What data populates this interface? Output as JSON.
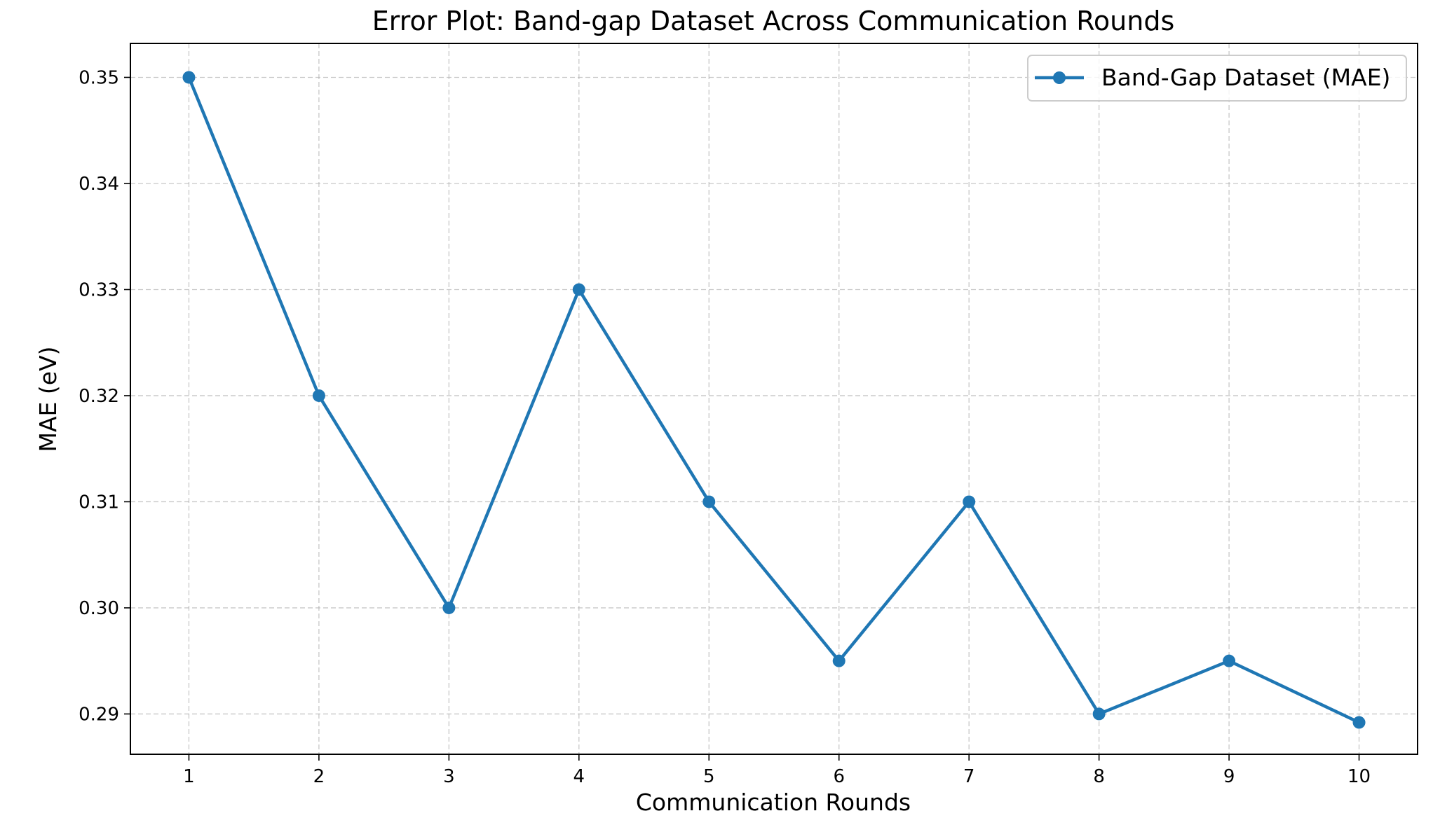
{
  "chart_data": {
    "type": "line",
    "title": "Error Plot: Band-gap Dataset Across Communication Rounds",
    "xlabel": "Communication Rounds",
    "ylabel": "MAE (eV)",
    "x": [
      1,
      2,
      3,
      4,
      5,
      6,
      7,
      8,
      9,
      10
    ],
    "x_ticks": [
      "1",
      "2",
      "3",
      "4",
      "5",
      "6",
      "7",
      "8",
      "9",
      "10"
    ],
    "y_ticks": [
      "0.29",
      "0.30",
      "0.31",
      "0.32",
      "0.33",
      "0.34",
      "0.35"
    ],
    "y_tick_values": [
      0.29,
      0.3,
      0.31,
      0.32,
      0.33,
      0.34,
      0.35
    ],
    "xlim": [
      0.55,
      10.45
    ],
    "ylim": [
      0.2862,
      0.3532
    ],
    "grid": true,
    "legend_position": "top-right",
    "series": [
      {
        "name": "Band-Gap Dataset (MAE)",
        "color": "#1f77b4",
        "marker": "circle",
        "values": [
          0.35,
          0.32,
          0.3,
          0.33,
          0.31,
          0.295,
          0.31,
          0.29,
          0.295,
          0.2892
        ]
      }
    ]
  }
}
